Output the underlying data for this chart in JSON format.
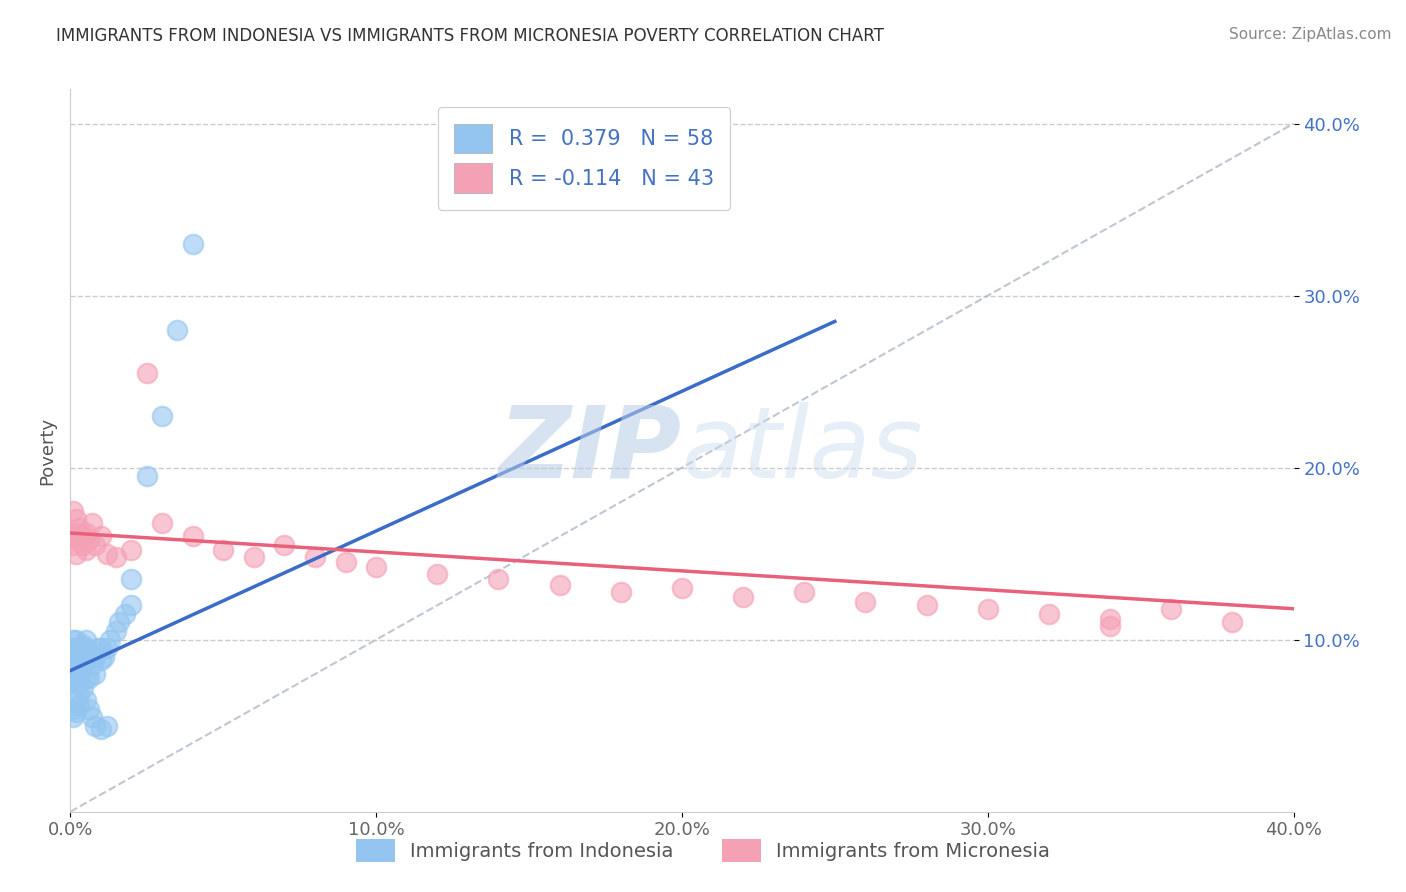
{
  "title": "IMMIGRANTS FROM INDONESIA VS IMMIGRANTS FROM MICRONESIA POVERTY CORRELATION CHART",
  "source": "Source: ZipAtlas.com",
  "ylabel": "Poverty",
  "xmin": 0.0,
  "xmax": 0.4,
  "ymin": 0.0,
  "ymax": 0.42,
  "yticks": [
    0.1,
    0.2,
    0.3,
    0.4
  ],
  "ytick_labels": [
    "10.0%",
    "20.0%",
    "30.0%",
    "40.0%"
  ],
  "xticks": [
    0.0,
    0.1,
    0.2,
    0.3,
    0.4
  ],
  "xtick_labels": [
    "0.0%",
    "10.0%",
    "20.0%",
    "30.0%",
    "40.0%"
  ],
  "R_indonesia": 0.379,
  "N_indonesia": 58,
  "R_micronesia": -0.114,
  "N_micronesia": 43,
  "indonesia_color": "#93c5f0",
  "micronesia_color": "#f4a0b5",
  "trend_indonesia_color": "#3a6cc8",
  "trend_micronesia_color": "#e8607a",
  "legend_indonesia": "Immigrants from Indonesia",
  "legend_micronesia": "Immigrants from Micronesia",
  "watermark_zip": "ZIP",
  "watermark_atlas": "atlas",
  "indonesia_x": [
    0.001,
    0.001,
    0.001,
    0.001,
    0.001,
    0.001,
    0.002,
    0.002,
    0.002,
    0.002,
    0.002,
    0.002,
    0.003,
    0.003,
    0.003,
    0.003,
    0.004,
    0.004,
    0.004,
    0.004,
    0.005,
    0.005,
    0.005,
    0.006,
    0.006,
    0.006,
    0.007,
    0.007,
    0.008,
    0.008,
    0.009,
    0.01,
    0.01,
    0.011,
    0.012,
    0.013,
    0.015,
    0.016,
    0.018,
    0.02,
    0.001,
    0.001,
    0.002,
    0.002,
    0.003,
    0.003,
    0.004,
    0.005,
    0.006,
    0.007,
    0.008,
    0.01,
    0.012,
    0.02,
    0.025,
    0.03,
    0.035,
    0.04
  ],
  "indonesia_y": [
    0.085,
    0.09,
    0.095,
    0.1,
    0.075,
    0.08,
    0.088,
    0.092,
    0.078,
    0.082,
    0.095,
    0.1,
    0.085,
    0.09,
    0.075,
    0.08,
    0.092,
    0.097,
    0.083,
    0.088,
    0.095,
    0.1,
    0.078,
    0.088,
    0.093,
    0.078,
    0.085,
    0.092,
    0.08,
    0.09,
    0.095,
    0.088,
    0.095,
    0.09,
    0.095,
    0.1,
    0.105,
    0.11,
    0.115,
    0.12,
    0.055,
    0.06,
    0.065,
    0.058,
    0.062,
    0.068,
    0.072,
    0.065,
    0.06,
    0.055,
    0.05,
    0.048,
    0.05,
    0.135,
    0.195,
    0.23,
    0.28,
    0.33
  ],
  "micronesia_x": [
    0.001,
    0.001,
    0.001,
    0.002,
    0.002,
    0.002,
    0.003,
    0.003,
    0.004,
    0.004,
    0.005,
    0.005,
    0.006,
    0.007,
    0.008,
    0.01,
    0.012,
    0.015,
    0.02,
    0.025,
    0.03,
    0.04,
    0.05,
    0.06,
    0.07,
    0.08,
    0.09,
    0.1,
    0.12,
    0.14,
    0.16,
    0.18,
    0.2,
    0.22,
    0.24,
    0.26,
    0.28,
    0.3,
    0.32,
    0.34,
    0.36,
    0.38,
    0.34
  ],
  "micronesia_y": [
    0.175,
    0.16,
    0.155,
    0.17,
    0.162,
    0.15,
    0.165,
    0.158,
    0.16,
    0.155,
    0.152,
    0.162,
    0.158,
    0.168,
    0.155,
    0.16,
    0.15,
    0.148,
    0.152,
    0.255,
    0.168,
    0.16,
    0.152,
    0.148,
    0.155,
    0.148,
    0.145,
    0.142,
    0.138,
    0.135,
    0.132,
    0.128,
    0.13,
    0.125,
    0.128,
    0.122,
    0.12,
    0.118,
    0.115,
    0.112,
    0.118,
    0.11,
    0.108
  ],
  "trend_indonesia_x0": 0.0,
  "trend_indonesia_y0": 0.082,
  "trend_indonesia_x1": 0.25,
  "trend_indonesia_y1": 0.285,
  "trend_micronesia_x0": 0.0,
  "trend_micronesia_y0": 0.162,
  "trend_micronesia_x1": 0.4,
  "trend_micronesia_y1": 0.118
}
